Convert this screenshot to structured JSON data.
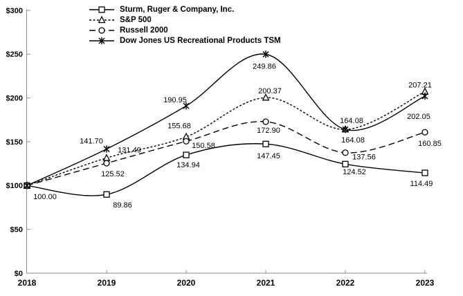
{
  "chart_data": {
    "type": "line",
    "title": "",
    "x_ticks": [
      "2018",
      "2019",
      "2020",
      "2021",
      "2022",
      "2023"
    ],
    "y_ticks": [
      "$0",
      "$50",
      "$100",
      "$150",
      "$200",
      "$250",
      "$300"
    ],
    "ylim": [
      0,
      300
    ],
    "grid": false,
    "legend_position": "top-inside",
    "colors": {
      "series": "#000000",
      "axis": "#8c8c8c",
      "text": "#000000"
    },
    "start_label": "100.00",
    "series": [
      {
        "name": "Sturm, Ruger & Company, Inc.",
        "marker": "square",
        "line_style": "solid",
        "values": [
          100.0,
          89.86,
          134.94,
          147.45,
          124.52,
          114.49
        ]
      },
      {
        "name": "S&P 500",
        "marker": "triangle",
        "line_style": "dotted",
        "values": [
          100.0,
          131.49,
          155.68,
          200.37,
          164.08,
          207.21
        ]
      },
      {
        "name": "Russell 2000",
        "marker": "circle",
        "line_style": "dashed",
        "values": [
          100.0,
          125.52,
          150.58,
          172.9,
          137.56,
          160.85
        ]
      },
      {
        "name": "Dow Jones US Recreational Products TSM",
        "marker": "star",
        "line_style": "solid",
        "values": [
          100.0,
          141.7,
          190.95,
          249.86,
          164.08,
          202.05
        ]
      }
    ]
  }
}
